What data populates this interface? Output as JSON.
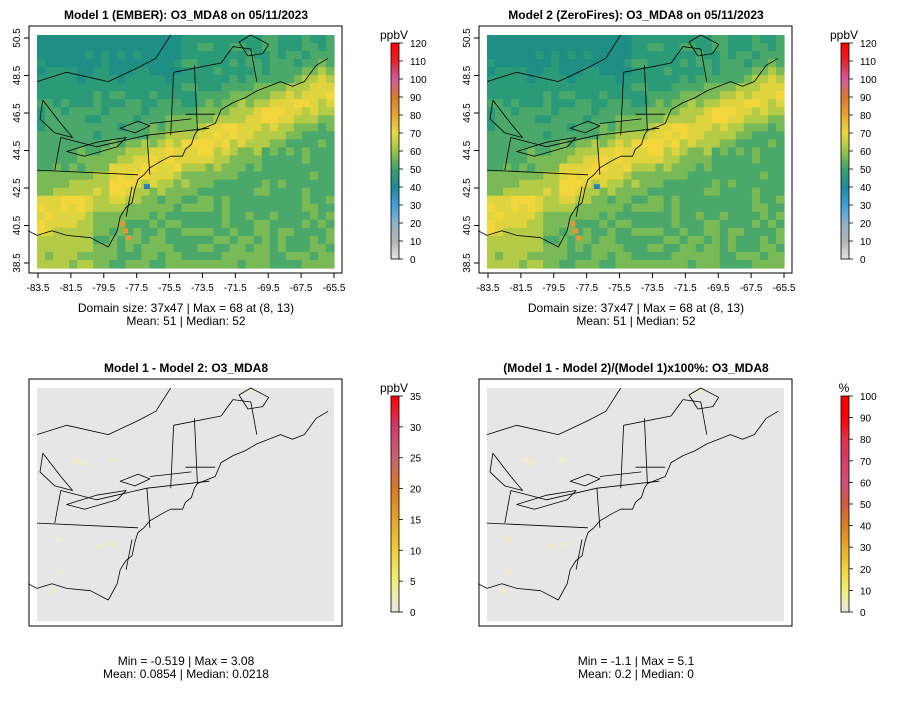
{
  "panels": [
    {
      "title": "Model 1 (EMBER): O3_MDA8 on 05/11/2023",
      "unit": "ppbV",
      "kind": "conc",
      "colorbar_ticks": [
        "0",
        "10",
        "20",
        "30",
        "40",
        "50",
        "60",
        "70",
        "80",
        "90",
        "100",
        "110",
        "120"
      ],
      "show_axes": true,
      "stats_line1": "Domain size: 37x47 | Max = 68 at (8, 13)",
      "stats_line2": "Mean: 51 |  Median: 52"
    },
    {
      "title": "Model 2 (ZeroFires): O3_MDA8 on 05/11/2023",
      "unit": "ppbV",
      "kind": "conc",
      "colorbar_ticks": [
        "0",
        "10",
        "20",
        "30",
        "40",
        "50",
        "60",
        "70",
        "80",
        "90",
        "100",
        "110",
        "120"
      ],
      "show_axes": true,
      "stats_line1": "Domain size: 37x47 | Max = 68 at (8, 13)",
      "stats_line2": "Mean: 51 |  Median: 52"
    },
    {
      "title": "Model 1 - Model 2: O3_MDA8",
      "unit": "ppbV",
      "kind": "diff",
      "colorbar_ticks": [
        "0",
        "5",
        "10",
        "15",
        "20",
        "25",
        "30",
        "35"
      ],
      "show_axes": false,
      "stats_line1": "Min = -0.519 | Max = 3.08",
      "stats_line2": "Mean: 0.0854 |  Median: 0.0218"
    },
    {
      "title": "(Model 1 - Model 2)/(Model 1)x100%: O3_MDA8",
      "unit": "%",
      "kind": "pct",
      "colorbar_ticks": [
        "0",
        "10",
        "20",
        "30",
        "40",
        "50",
        "60",
        "70",
        "80",
        "90",
        "100"
      ],
      "show_axes": false,
      "stats_line1": "Min = -1.1 | Max = 5.1",
      "stats_line2": "Mean: 0.2 |  Median: 0"
    }
  ],
  "x_ticks": [
    "-83.5",
    "-81.5",
    "-79.5",
    "-77.5",
    "-75.5",
    "-73.5",
    "-71.5",
    "-69.5",
    "-67.5",
    "-65.5"
  ],
  "y_ticks": [
    "38.5",
    "40.5",
    "42.5",
    "44.5",
    "46.5",
    "48.5",
    "50.5"
  ],
  "colors": {
    "conc_scale": [
      "#e6e6e6",
      "#b3b3b3",
      "#8fb2cc",
      "#3f9fe0",
      "#1e8a9a",
      "#3aa270",
      "#97c447",
      "#ecd941",
      "#e8a531",
      "#d97a2a",
      "#d25ba0",
      "#e8222a",
      "#ff0000"
    ],
    "diff_scale": [
      "#e6e6e6",
      "#f2ef7a",
      "#f0cf36",
      "#e8a22b",
      "#d97a20",
      "#cc6070",
      "#d53a6a",
      "#ff0000"
    ],
    "pct_scale": [
      "#e6e6e6",
      "#f2ef7a",
      "#f0d33b",
      "#e8a92d",
      "#da8024",
      "#cf5d3d",
      "#cf4f78",
      "#d73c6a",
      "#e4304a",
      "#ff0000"
    ],
    "neutral": "#e6e6e6"
  }
}
